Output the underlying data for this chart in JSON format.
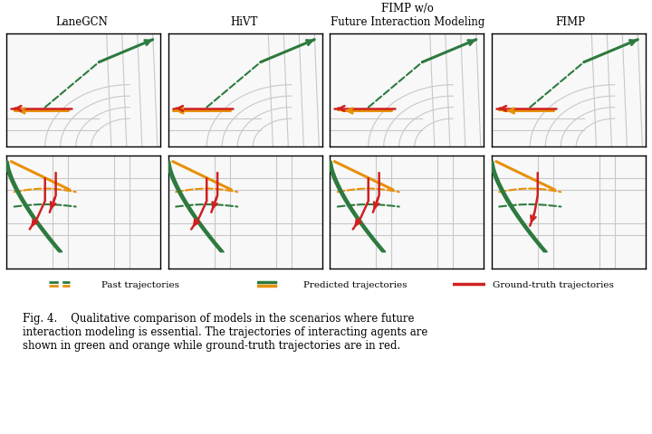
{
  "col_titles": [
    "LaneGCN",
    "HiVT",
    "FIMP w/o\nFuture Interaction Modeling",
    "FIMP"
  ],
  "fig_caption": "Fig. 4.    Qualitative comparison of models in the scenarios where future\ninteraction modeling is essential. The trajectories of interacting agents are\nshown in green and orange while ground-truth trajectories are in red.",
  "legend_items": [
    {
      "label": "Past trajectories",
      "color_green": "#2d8a4e",
      "color_orange": "#e8a020",
      "style": "dashed"
    },
    {
      "label": "Predicted trajectories",
      "color_green": "#2d8a4e",
      "color_orange": "#e8a020",
      "style": "solid"
    },
    {
      "label": "Ground-truth trajectories",
      "color": "#d93030",
      "style": "solid"
    }
  ],
  "green": "#2d7a3e",
  "orange": "#e8900a",
  "red": "#d02020",
  "road_color": "#c8c8c8",
  "bg_color": "#ffffff",
  "panel_bg": "#f5f5f5"
}
